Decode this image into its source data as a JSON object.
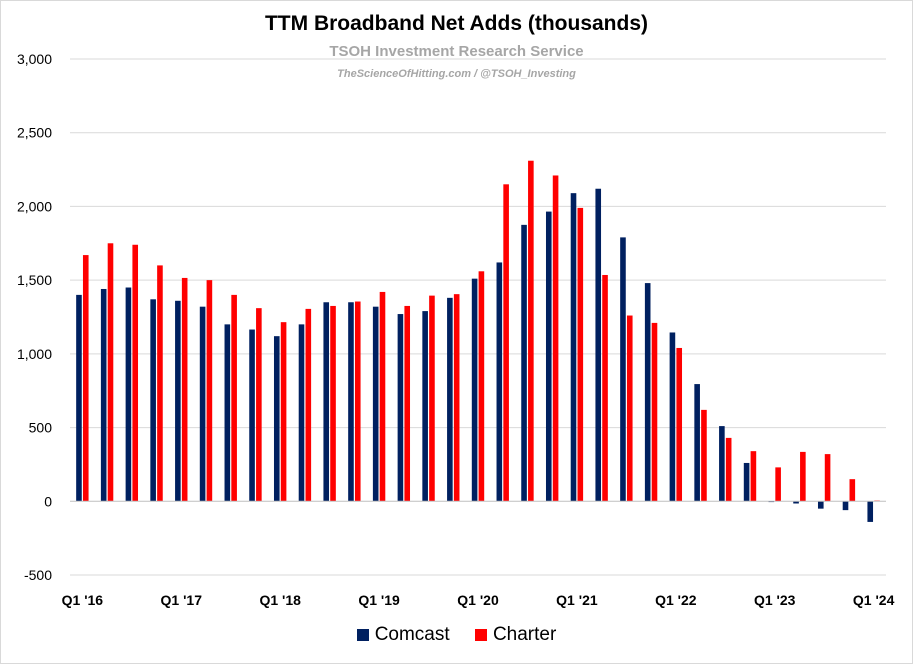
{
  "chart_data": {
    "type": "bar",
    "title": "TTM Broadband Net Adds (thousands)",
    "subtitle": "TSOH Investment Research Service",
    "credit": "TheScienceOfHitting.com / @TSOH_Investing",
    "ylim": [
      -500,
      3000
    ],
    "yticks": [
      -500,
      0,
      500,
      1000,
      1500,
      2000,
      2500,
      3000
    ],
    "ytick_labels": [
      "-500",
      "0",
      "500",
      "1,000",
      "1,500",
      "2,000",
      "2,500",
      "3,000"
    ],
    "grid": true,
    "legend_position": "bottom",
    "categories": [
      "Q1 '16",
      "Q2 '16",
      "Q3 '16",
      "Q4 '16",
      "Q1 '17",
      "Q2 '17",
      "Q3 '17",
      "Q4 '17",
      "Q1 '18",
      "Q2 '18",
      "Q3 '18",
      "Q4 '18",
      "Q1 '19",
      "Q2 '19",
      "Q3 '19",
      "Q4 '19",
      "Q1 '20",
      "Q2 '20",
      "Q3 '20",
      "Q4 '20",
      "Q1 '21",
      "Q2 '21",
      "Q3 '21",
      "Q4 '21",
      "Q1 '22",
      "Q2 '22",
      "Q3 '22",
      "Q4 '22",
      "Q1 '23",
      "Q2 '23",
      "Q3 '23",
      "Q4 '23",
      "Q1 '24"
    ],
    "x_tick_labels": [
      "Q1 '16",
      "Q1 '17",
      "Q1 '18",
      "Q1 '19",
      "Q1 '20",
      "Q1 '21",
      "Q1 '22",
      "Q1 '23",
      "Q1 '24"
    ],
    "series": [
      {
        "name": "Comcast",
        "color": "#002060",
        "values": [
          1400,
          1440,
          1450,
          1370,
          1360,
          1320,
          1200,
          1165,
          1120,
          1200,
          1350,
          1350,
          1320,
          1270,
          1290,
          1380,
          1510,
          1620,
          1875,
          1965,
          2090,
          2120,
          1790,
          1480,
          1145,
          795,
          510,
          260,
          0,
          -15,
          -50,
          -60,
          -140
        ]
      },
      {
        "name": "Charter",
        "color": "#ff0000",
        "values": [
          1670,
          1750,
          1740,
          1600,
          1515,
          1500,
          1400,
          1310,
          1215,
          1305,
          1325,
          1355,
          1420,
          1325,
          1395,
          1405,
          1560,
          2150,
          2310,
          2210,
          1990,
          1535,
          1260,
          1210,
          1040,
          620,
          430,
          340,
          230,
          335,
          320,
          150,
          5
        ]
      }
    ]
  }
}
